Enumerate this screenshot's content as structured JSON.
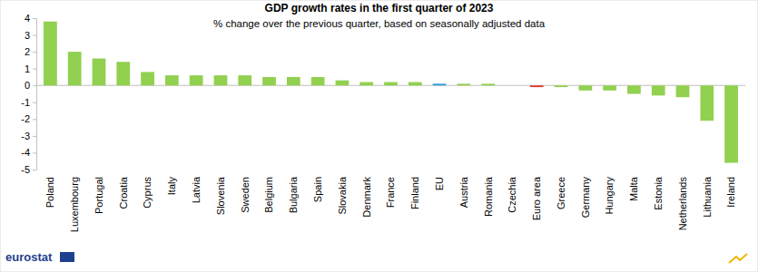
{
  "chart_data": {
    "type": "bar",
    "title": "GDP growth rates in the first quarter of  2023",
    "subtitle": "% change over the previous quarter, based on seasonally adjusted data",
    "source": "eurostat",
    "categories": [
      "Poland",
      "Luxembourg",
      "Portugal",
      "Croatia",
      "Cyprus",
      "Italy",
      "Latvia",
      "Slovenia",
      "Sweden",
      "Belgium",
      "Bulgaria",
      "Spain",
      "Slovakia",
      "Denmark",
      "France",
      "Finland",
      "EU",
      "Austria",
      "Romania",
      "Czechia",
      "Euro area",
      "Greece",
      "Germany",
      "Hungary",
      "Malta",
      "Estonia",
      "Netherlands",
      "Lithuania",
      "Ireland"
    ],
    "values": [
      3.8,
      2.0,
      1.6,
      1.4,
      0.8,
      0.6,
      0.6,
      0.6,
      0.6,
      0.5,
      0.5,
      0.5,
      0.3,
      0.2,
      0.2,
      0.2,
      0.1,
      0.1,
      0.1,
      0.0,
      -0.1,
      -0.1,
      -0.3,
      -0.3,
      -0.5,
      -0.6,
      -0.7,
      -2.1,
      -4.6
    ],
    "colors": [
      "#92d050",
      "#92d050",
      "#92d050",
      "#92d050",
      "#92d050",
      "#92d050",
      "#92d050",
      "#92d050",
      "#92d050",
      "#92d050",
      "#92d050",
      "#92d050",
      "#92d050",
      "#92d050",
      "#92d050",
      "#92d050",
      "#2e9bd6",
      "#92d050",
      "#92d050",
      "#92d050",
      "#e0362c",
      "#92d050",
      "#92d050",
      "#92d050",
      "#92d050",
      "#92d050",
      "#92d050",
      "#92d050",
      "#92d050"
    ],
    "ylim": [
      -5,
      4
    ],
    "yticks": [
      -5,
      -4,
      -3,
      -2,
      -1,
      0,
      1,
      2,
      3,
      4
    ],
    "grid": false
  }
}
